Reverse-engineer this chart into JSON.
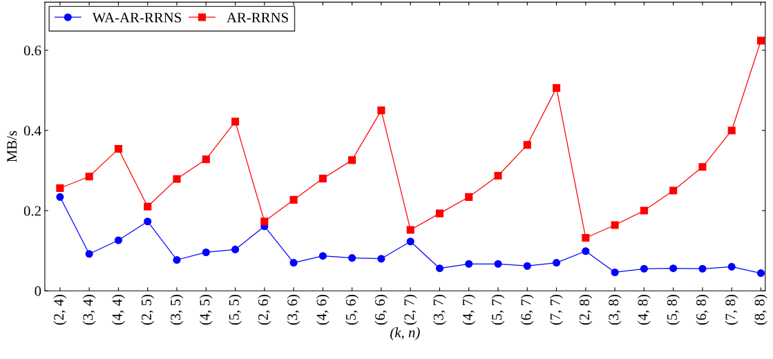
{
  "chart_data": {
    "type": "line",
    "xlabel": "(k, n)",
    "ylabel": "MB/s",
    "categories": [
      "(2, 4)",
      "(3, 4)",
      "(4, 4)",
      "(2, 5)",
      "(3, 5)",
      "(4, 5)",
      "(5, 5)",
      "(2, 6)",
      "(3, 6)",
      "(4, 6)",
      "(5, 6)",
      "(6, 6)",
      "(2, 7)",
      "(3, 7)",
      "(4, 7)",
      "(5, 7)",
      "(6, 7)",
      "(7, 7)",
      "(2, 8)",
      "(3, 8)",
      "(4, 8)",
      "(5, 8)",
      "(6, 8)",
      "(7, 8)",
      "(8, 8)"
    ],
    "series": [
      {
        "name": "WA-AR-RRNS",
        "color": "#0000ff",
        "marker": "circle",
        "values": [
          0.234,
          0.092,
          0.126,
          0.173,
          0.077,
          0.096,
          0.103,
          0.161,
          0.07,
          0.087,
          0.082,
          0.08,
          0.123,
          0.056,
          0.067,
          0.067,
          0.062,
          0.07,
          0.099,
          0.046,
          0.055,
          0.056,
          0.055,
          0.06,
          0.044
        ]
      },
      {
        "name": "AR-RRNS",
        "color": "#ff0000",
        "marker": "square",
        "values": [
          0.256,
          0.285,
          0.354,
          0.21,
          0.279,
          0.328,
          0.422,
          0.173,
          0.227,
          0.28,
          0.326,
          0.45,
          0.152,
          0.193,
          0.234,
          0.287,
          0.364,
          0.506,
          0.132,
          0.164,
          0.2,
          0.25,
          0.309,
          0.4,
          0.624
        ]
      }
    ],
    "ylim": [
      0,
      0.72
    ],
    "yticks": [
      0,
      0.2,
      0.4,
      0.6
    ],
    "grid": false,
    "legend": "top left",
    "line_style": "solid"
  }
}
